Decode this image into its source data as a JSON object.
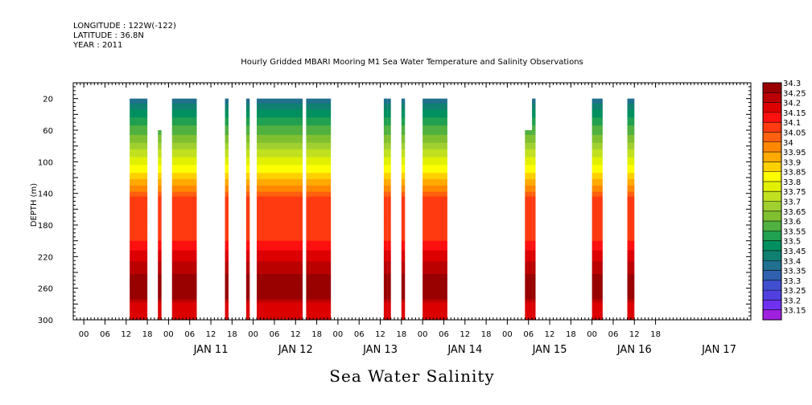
{
  "header": {
    "longitude": "LONGITUDE : 122W(-122)",
    "latitude": "LATITUDE : 36.8N",
    "year": "YEAR : 2011",
    "title": "Hourly Gridded MBARI Mooring M1 Sea Water Temperature and Salinity Observations"
  },
  "chart_data": {
    "type": "heatmap",
    "title": "Hourly Gridded MBARI Mooring M1 Sea Water Temperature and Salinity Observations",
    "bottom_title": "Sea Water Salinity",
    "ylabel": "DEPTH (m)",
    "y_reversed": true,
    "ylim": [
      0,
      300
    ],
    "y_ticks": [
      20,
      60,
      100,
      140,
      180,
      220,
      260,
      300
    ],
    "x_unit": "hours since 2011-01-10 00:00",
    "xlim": [
      -3,
      189
    ],
    "x_tick_labels": [
      "00",
      "06",
      "12",
      "18",
      "00",
      "06",
      "12",
      "18",
      "00",
      "06",
      "12",
      "18",
      "00",
      "06",
      "12",
      "18",
      "00",
      "06",
      "12",
      "18",
      "00",
      "06",
      "12",
      "18",
      "00",
      "06",
      "12",
      "18"
    ],
    "day_labels": [
      {
        "label": "JAN 11",
        "x": 36
      },
      {
        "label": "JAN 12",
        "x": 60
      },
      {
        "label": "JAN 13",
        "x": 84
      },
      {
        "label": "JAN 14",
        "x": 108
      },
      {
        "label": "JAN 15",
        "x": 132
      },
      {
        "label": "JAN 16",
        "x": 156
      },
      {
        "label": "JAN 17",
        "x": 180
      }
    ],
    "profile": [
      {
        "depth": 20,
        "value": 33.37
      },
      {
        "depth": 35,
        "value": 33.45
      },
      {
        "depth": 55,
        "value": 33.55
      },
      {
        "depth": 70,
        "value": 33.62
      },
      {
        "depth": 85,
        "value": 33.7
      },
      {
        "depth": 100,
        "value": 33.78
      },
      {
        "depth": 115,
        "value": 33.86
      },
      {
        "depth": 128,
        "value": 33.93
      },
      {
        "depth": 140,
        "value": 34.02
      },
      {
        "depth": 148,
        "value": 34.07
      },
      {
        "depth": 200,
        "value": 34.1
      },
      {
        "depth": 218,
        "value": 34.17
      },
      {
        "depth": 232,
        "value": 34.22
      },
      {
        "depth": 248,
        "value": 34.27
      },
      {
        "depth": 272,
        "value": 34.28
      },
      {
        "depth": 280,
        "value": 34.17
      },
      {
        "depth": 300,
        "value": 34.15
      }
    ],
    "data_segments": [
      {
        "x0": 13,
        "x1": 18,
        "top": 20
      },
      {
        "x0": 21,
        "x1": 22,
        "top": 60
      },
      {
        "x0": 25,
        "x1": 32,
        "top": 20
      },
      {
        "x0": 40,
        "x1": 41,
        "top": 20
      },
      {
        "x0": 46,
        "x1": 47,
        "top": 20
      },
      {
        "x0": 49,
        "x1": 62,
        "top": 20
      },
      {
        "x0": 63,
        "x1": 70,
        "top": 20
      },
      {
        "x0": 85,
        "x1": 86,
        "top": 20
      },
      {
        "x0": 86,
        "x1": 87,
        "top": 20
      },
      {
        "x0": 90,
        "x1": 91,
        "top": 20
      },
      {
        "x0": 96,
        "x1": 103,
        "top": 20
      },
      {
        "x0": 125,
        "x1": 127,
        "top": 60
      },
      {
        "x0": 127,
        "x1": 128,
        "top": 20
      },
      {
        "x0": 144,
        "x1": 147,
        "top": 20
      },
      {
        "x0": 154,
        "x1": 156,
        "top": 20
      }
    ],
    "colorbar": {
      "labels": [
        "34.3",
        "34.25",
        "34.2",
        "34.15",
        "34.1",
        "34.05",
        "34",
        "33.95",
        "33.9",
        "33.85",
        "33.8",
        "33.75",
        "33.7",
        "33.65",
        "33.6",
        "33.55",
        "33.5",
        "33.45",
        "33.4",
        "33.35",
        "33.3",
        "33.25",
        "33.2",
        "33.15"
      ],
      "colors": [
        "#990000",
        "#bb0000",
        "#dd0000",
        "#ff1010",
        "#ff3a10",
        "#ff6010",
        "#ff8800",
        "#ffaa00",
        "#ffd000",
        "#ffff00",
        "#e0f000",
        "#c0e020",
        "#a0d030",
        "#80c030",
        "#50b040",
        "#20a050",
        "#009060",
        "#108070",
        "#207090",
        "#3060b0",
        "#4050d0",
        "#5040e0",
        "#7030f0",
        "#a020e0"
      ],
      "low_color": "#d020e8"
    }
  }
}
